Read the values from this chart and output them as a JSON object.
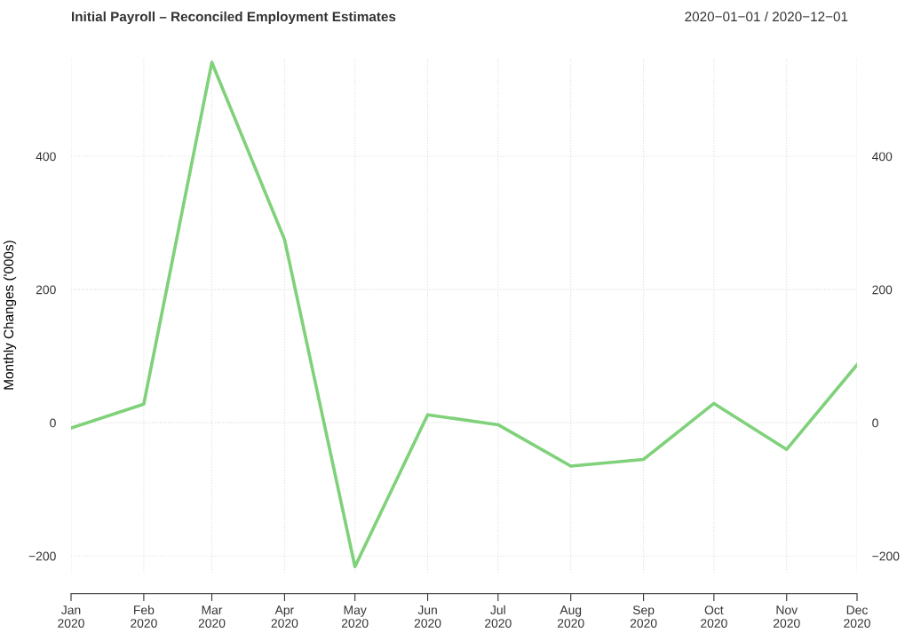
{
  "chart_data": {
    "type": "line",
    "title": "Initial Payroll – Reconciled Employment Estimates",
    "subtitle": "2020−01−01 / 2020−12−01",
    "ylabel": "Monthly Changes ('000s)",
    "x": [
      "2020-01",
      "2020-02",
      "2020-03",
      "2020-04",
      "2020-05",
      "2020-06",
      "2020-07",
      "2020-08",
      "2020-09",
      "2020-10",
      "2020-11",
      "2020-12"
    ],
    "series": [
      {
        "color": "#7fd17a",
        "values": [
          -8,
          28,
          541,
          275,
          -216,
          12,
          -3,
          -65,
          -55,
          29,
          -40,
          87
        ]
      }
    ],
    "xlim": [
      "2020-01",
      "2020-12"
    ],
    "xticks": [
      {
        "value": "2020-01",
        "label": "Jan\n2020"
      },
      {
        "value": "2020-02",
        "label": "Feb\n2020"
      },
      {
        "value": "2020-03",
        "label": "Mar\n2020"
      },
      {
        "value": "2020-04",
        "label": "Apr\n2020"
      },
      {
        "value": "2020-05",
        "label": "May\n2020"
      },
      {
        "value": "2020-06",
        "label": "Jun\n2020"
      },
      {
        "value": "2020-07",
        "label": "Jul\n2020"
      },
      {
        "value": "2020-08",
        "label": "Aug\n2020"
      },
      {
        "value": "2020-09",
        "label": "Sep\n2020"
      },
      {
        "value": "2020-10",
        "label": "Oct\n2020"
      },
      {
        "value": "2020-11",
        "label": "Nov\n2020"
      },
      {
        "value": "2020-12",
        "label": "Dec\n2020"
      }
    ],
    "ylim": [
      -225,
      548
    ],
    "yticks": [
      {
        "value": -200,
        "label": "−200"
      },
      0,
      200,
      400
    ],
    "y2lim": [
      -225,
      548
    ],
    "y2ticks": [
      {
        "value": -200,
        "label": "−200"
      },
      0,
      200,
      400
    ],
    "grid": true,
    "line_style": "solid",
    "marker": "none"
  }
}
